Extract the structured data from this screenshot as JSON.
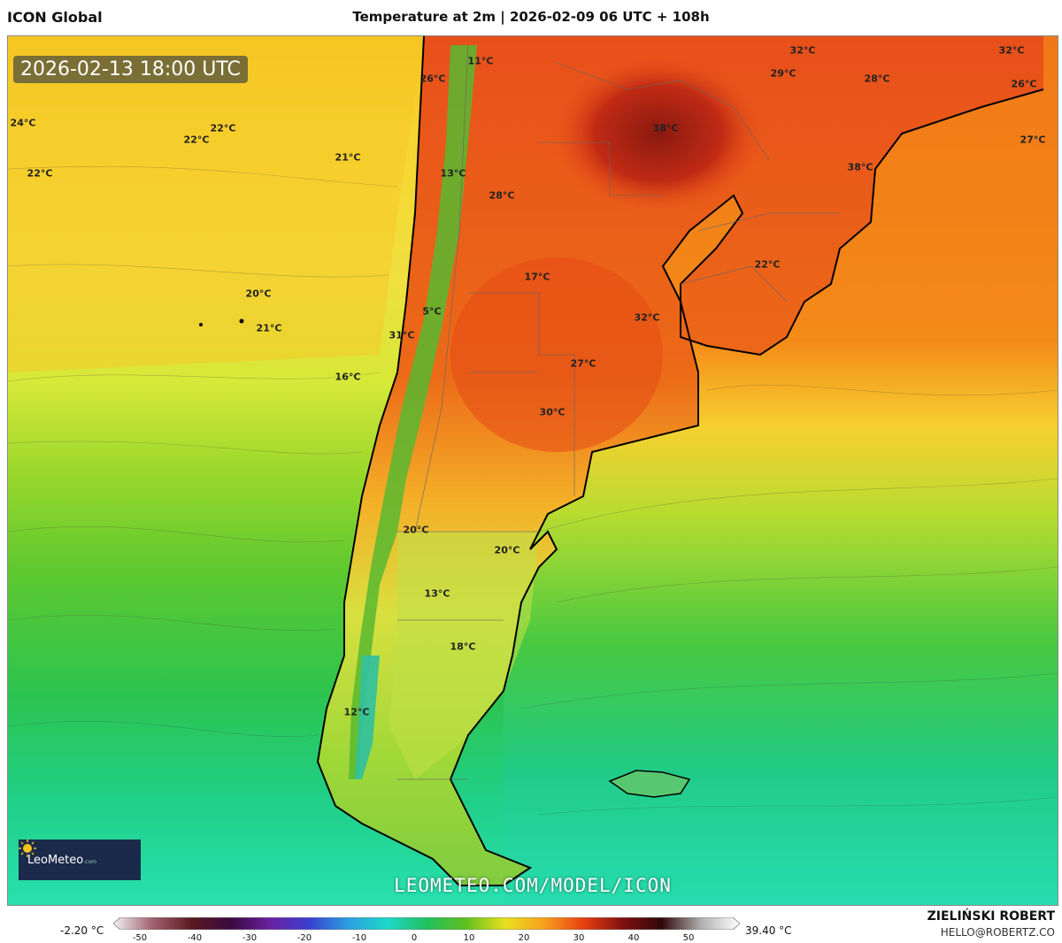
{
  "header": {
    "model": "ICON Global",
    "title": "Temperature at 2m | 2026-02-09 06 UTC + 108h"
  },
  "map": {
    "valid_time": "2026-02-13 18:00 UTC",
    "watermark_url": "LEOMETEO.COM/MODEL/ICON",
    "logo": {
      "name": "LeoMeteo",
      "suffix": ".com",
      "icon": "sun-icon"
    },
    "temperature_labels": [
      {
        "text": "11°C"
      },
      {
        "text": "26°C"
      },
      {
        "text": "32°C"
      },
      {
        "text": "32°C"
      },
      {
        "text": "29°C"
      },
      {
        "text": "28°C"
      },
      {
        "text": "26°C"
      },
      {
        "text": "24°C"
      },
      {
        "text": "22°C"
      },
      {
        "text": "22°C"
      },
      {
        "text": "38°C"
      },
      {
        "text": "27°C"
      },
      {
        "text": "22°C"
      },
      {
        "text": "21°C"
      },
      {
        "text": "13°C"
      },
      {
        "text": "38°C"
      },
      {
        "text": "28°C"
      },
      {
        "text": "17°C"
      },
      {
        "text": "22°C"
      },
      {
        "text": "20°C"
      },
      {
        "text": "5°C"
      },
      {
        "text": "32°C"
      },
      {
        "text": "21°C"
      },
      {
        "text": "31°C"
      },
      {
        "text": "27°C"
      },
      {
        "text": "16°C"
      },
      {
        "text": "30°C"
      },
      {
        "text": "20°C"
      },
      {
        "text": "20°C"
      },
      {
        "text": "13°C"
      },
      {
        "text": "18°C"
      },
      {
        "text": "12°C"
      }
    ]
  },
  "legend": {
    "min": "-2.20 °C",
    "max": "39.40 °C",
    "ticks": [
      "-50",
      "-40",
      "-30",
      "-20",
      "-10",
      "0",
      "10",
      "20",
      "30",
      "40",
      "50"
    ],
    "colors": [
      "#f2f2f2",
      "#a06070",
      "#5a1a20",
      "#3a0a40",
      "#6a20a0",
      "#3a40d0",
      "#2aa0e0",
      "#20d8c8",
      "#20c060",
      "#60c020",
      "#e8e020",
      "#f8a020",
      "#e84010",
      "#801010",
      "#300808",
      "#b0b0b0",
      "#ffffff"
    ]
  },
  "footer": {
    "author": "ZIELIŃSKI ROBERT",
    "email": "HELLO@ROBERTZ.CO"
  }
}
